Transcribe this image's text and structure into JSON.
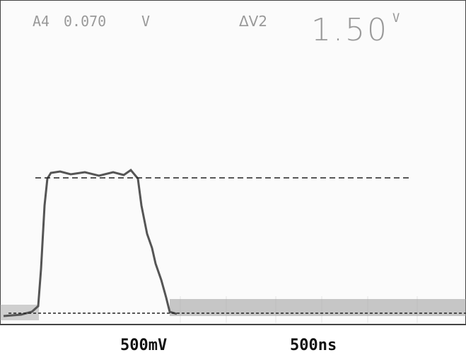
{
  "readout": {
    "channel": "A4",
    "cursor_value": "0.070",
    "cursor_unit": "V",
    "delta_label": "ΔV2",
    "delta_value": "1.50",
    "delta_unit": "V"
  },
  "scale": {
    "volts_per_div": "500mV",
    "time_per_div": "500ns"
  }
}
